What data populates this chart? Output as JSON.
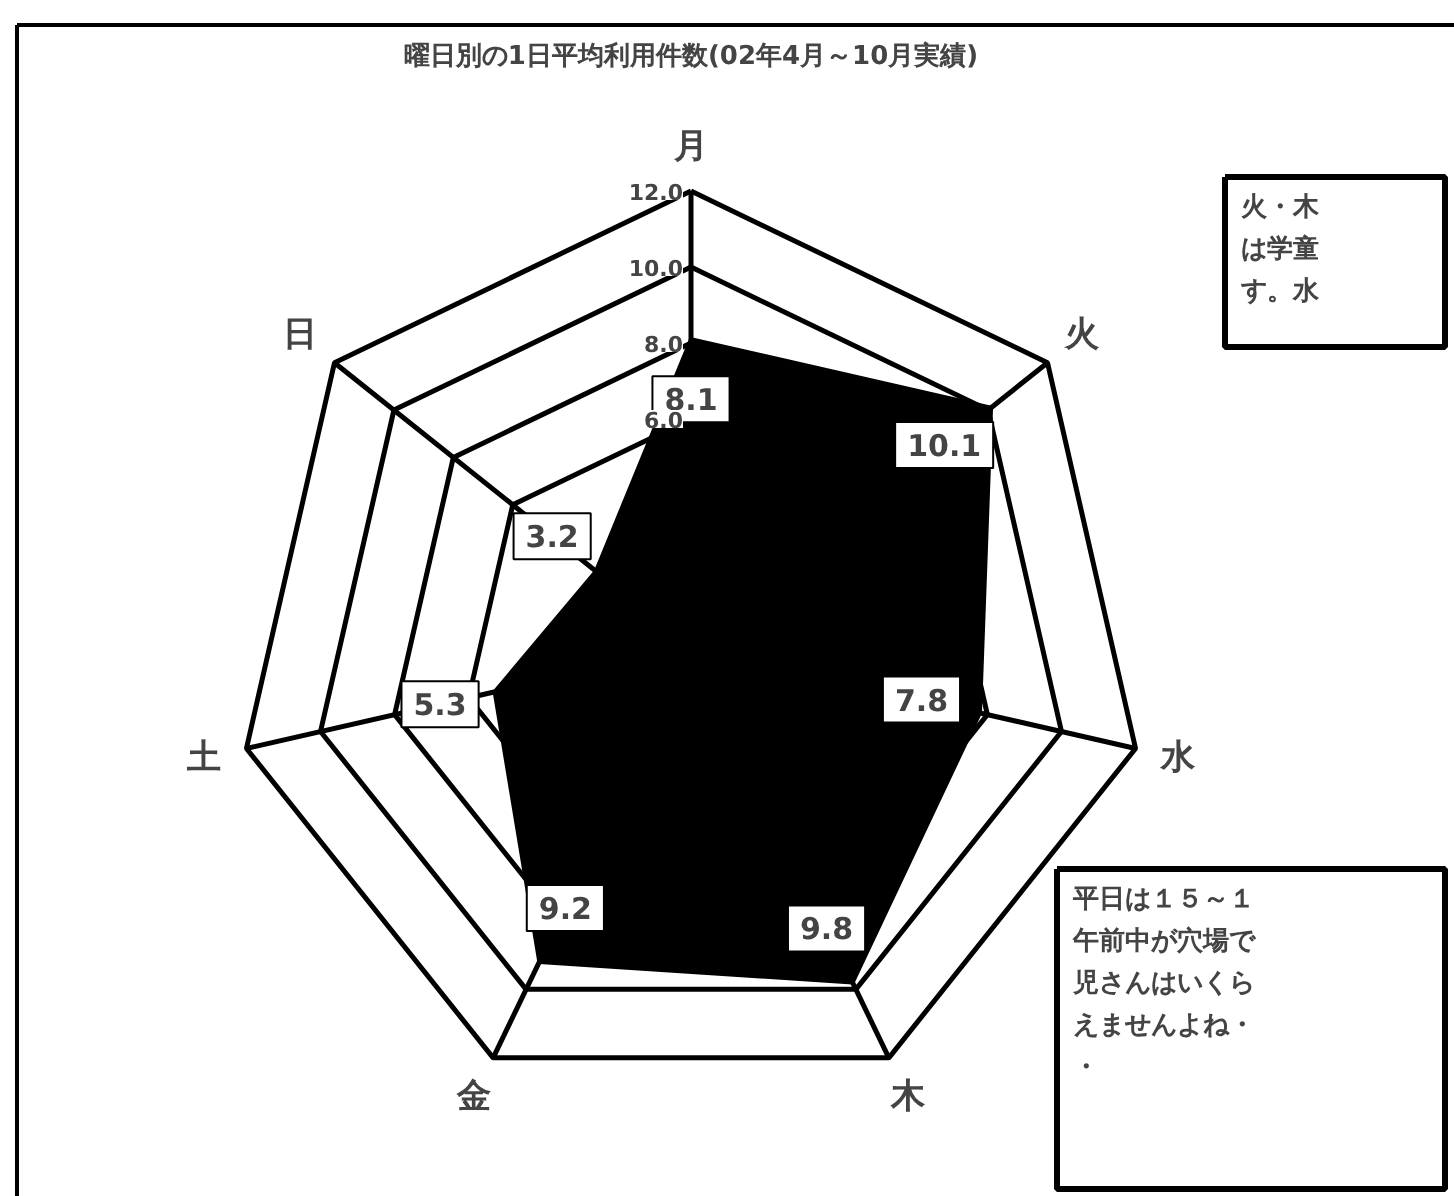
{
  "chart_data": {
    "type": "radar",
    "title": "曜日別の1日平均利用件数(02年4月～10月実績)",
    "categories": [
      "月",
      "火",
      "水",
      "木",
      "金",
      "土",
      "日"
    ],
    "series": [
      {
        "color": "#000000",
        "values": [
          8.1,
          10.1,
          7.8,
          9.8,
          9.2,
          5.3,
          3.2
        ]
      }
    ],
    "ylim": [
      0,
      12
    ],
    "yticks": [
      {
        "value": 6,
        "label": "6.0"
      },
      {
        "value": 8,
        "label": "8.0"
      },
      {
        "value": 10,
        "label": "10.0"
      },
      {
        "value": 12,
        "label": "12.0"
      }
    ],
    "grid": true,
    "data_labels": true,
    "annotations": [
      "火・木は学童す。水",
      "平日は１５～１午前中が穴場で児さんはいくらえませんよね・・"
    ]
  }
}
